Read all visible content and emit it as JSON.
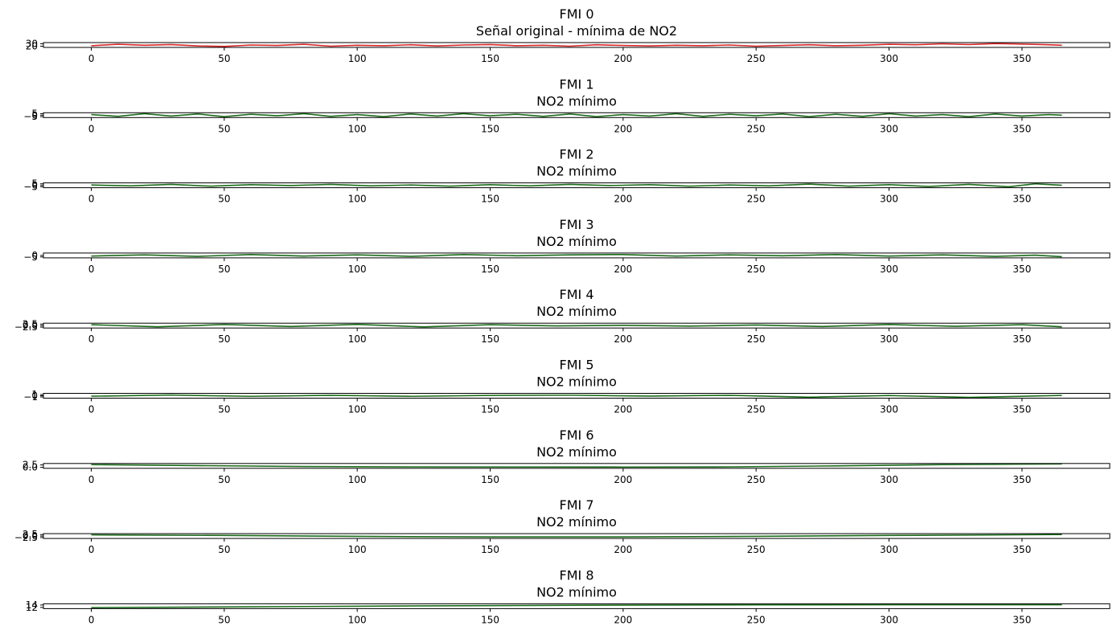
{
  "figure": {
    "panels": [
      {
        "title": "FMI 0",
        "subtitle": "Señal original - mínima de NO2",
        "yticks": [
          "20",
          "30"
        ],
        "ylim": [
          15,
          35
        ],
        "line_color": "#d62728"
      },
      {
        "title": "FMI 1",
        "subtitle": "NO2 mínimo",
        "yticks": [
          "−5",
          "0",
          "5"
        ],
        "ylim": [
          -8,
          8
        ],
        "line_color": "#1a6b1a"
      },
      {
        "title": "FMI 2",
        "subtitle": "NO2 mínimo",
        "yticks": [
          "−5",
          "0",
          "5"
        ],
        "ylim": [
          -8,
          8
        ],
        "line_color": "#1a6b1a"
      },
      {
        "title": "FMI 3",
        "subtitle": "NO2 mínimo",
        "yticks": [
          "−5",
          "0"
        ],
        "ylim": [
          -8,
          8
        ],
        "line_color": "#1a6b1a"
      },
      {
        "title": "FMI 4",
        "subtitle": "NO2 mínimo",
        "yticks": [
          "−2.5",
          "0.0",
          "2.5"
        ],
        "ylim": [
          -4,
          4
        ],
        "line_color": "#1a6b1a"
      },
      {
        "title": "FMI 5",
        "subtitle": "NO2 mínimo",
        "yticks": [
          "−1",
          "0",
          "1"
        ],
        "ylim": [
          -2,
          2
        ],
        "line_color": "#1a6b1a"
      },
      {
        "title": "FMI 6",
        "subtitle": "NO2 mínimo",
        "yticks": [
          "0.0",
          "2.5"
        ],
        "ylim": [
          -1,
          4
        ],
        "line_color": "#1a6b1a"
      },
      {
        "title": "FMI 7",
        "subtitle": "NO2 mínimo",
        "yticks": [
          "−2.5",
          "0.0",
          "2.5"
        ],
        "ylim": [
          -4,
          4
        ],
        "line_color": "#1a6b1a"
      },
      {
        "title": "FMI 8",
        "subtitle": "NO2 mínimo",
        "yticks": [
          "12",
          "14"
        ],
        "ylim": [
          11,
          15
        ],
        "line_color": "#1a6b1a"
      }
    ]
  },
  "chart_data": [
    {
      "type": "line",
      "title": "FMI 0",
      "subtitle": "Señal original - mínima de NO2",
      "x_range": [
        0,
        365
      ],
      "xlim": [
        -18,
        383
      ],
      "xticks": [
        0,
        50,
        100,
        150,
        200,
        250,
        300,
        350
      ],
      "ylim": [
        15,
        35
      ],
      "yticks": [
        20,
        30
      ],
      "grid": false,
      "series": [
        {
          "color": "#d62728",
          "x": [
            0,
            10,
            20,
            30,
            40,
            50,
            60,
            70,
            80,
            90,
            100,
            110,
            120,
            130,
            140,
            150,
            160,
            170,
            180,
            190,
            200,
            210,
            220,
            230,
            240,
            250,
            260,
            270,
            280,
            290,
            300,
            310,
            320,
            330,
            340,
            350,
            360,
            365
          ],
          "y": [
            22,
            28,
            24,
            27,
            21,
            19,
            25,
            23,
            28,
            20,
            24,
            22,
            26,
            21,
            25,
            27,
            22,
            24,
            20,
            26,
            23,
            21,
            24,
            22,
            25,
            20,
            23,
            26,
            22,
            24,
            28,
            26,
            30,
            27,
            31,
            29,
            26,
            24
          ]
        }
      ]
    },
    {
      "type": "line",
      "title": "FMI 1",
      "subtitle": "NO2 mínimo",
      "x_range": [
        0,
        365
      ],
      "xlim": [
        -18,
        383
      ],
      "xticks": [
        0,
        50,
        100,
        150,
        200,
        250,
        300,
        350
      ],
      "ylim": [
        -8,
        8
      ],
      "yticks": [
        -5,
        0,
        5
      ],
      "grid": false,
      "series": [
        {
          "color": "#1a6b1a",
          "x": [
            0,
            10,
            20,
            30,
            40,
            50,
            60,
            70,
            80,
            90,
            100,
            110,
            120,
            130,
            140,
            150,
            160,
            170,
            180,
            190,
            200,
            210,
            220,
            230,
            240,
            250,
            260,
            270,
            280,
            290,
            300,
            310,
            320,
            330,
            340,
            350,
            360,
            365
          ],
          "y": [
            2,
            -4,
            5,
            -3,
            4,
            -5,
            3,
            -2,
            5,
            -4,
            2,
            -5,
            4,
            -3,
            5,
            -2,
            3,
            -4,
            4,
            -5,
            2,
            -3,
            5,
            -4,
            3,
            -2,
            4,
            -5,
            3,
            -4,
            5,
            -3,
            2,
            -5,
            4,
            -3,
            2,
            0
          ]
        }
      ]
    },
    {
      "type": "line",
      "title": "FMI 2",
      "subtitle": "NO2 mínimo",
      "x_range": [
        0,
        365
      ],
      "xlim": [
        -18,
        383
      ],
      "xticks": [
        0,
        50,
        100,
        150,
        200,
        250,
        300,
        350
      ],
      "ylim": [
        -8,
        8
      ],
      "yticks": [
        -5,
        0,
        5
      ],
      "grid": false,
      "series": [
        {
          "color": "#1a6b1a",
          "x": [
            0,
            15,
            30,
            45,
            60,
            75,
            90,
            105,
            120,
            135,
            150,
            165,
            180,
            195,
            210,
            225,
            240,
            255,
            270,
            285,
            300,
            315,
            330,
            345,
            355,
            365
          ],
          "y": [
            1,
            -2,
            3,
            -3,
            2,
            -1,
            3,
            -2,
            1,
            -3,
            2,
            -2,
            3,
            -1,
            2,
            -3,
            1,
            -2,
            4,
            -3,
            2,
            -4,
            3,
            -5,
            5,
            0
          ]
        }
      ]
    },
    {
      "type": "line",
      "title": "FMI 3",
      "subtitle": "NO2 mínimo",
      "x_range": [
        0,
        365
      ],
      "xlim": [
        -18,
        383
      ],
      "xticks": [
        0,
        50,
        100,
        150,
        200,
        250,
        300,
        350
      ],
      "ylim": [
        -8,
        8
      ],
      "yticks": [
        -5,
        0
      ],
      "grid": false,
      "series": [
        {
          "color": "#1a6b1a",
          "x": [
            0,
            20,
            40,
            60,
            80,
            100,
            120,
            140,
            160,
            180,
            200,
            220,
            240,
            260,
            280,
            300,
            320,
            340,
            355,
            365
          ],
          "y": [
            -2,
            2,
            -3,
            3,
            -2,
            2,
            -3,
            3,
            -1,
            2,
            3,
            -2,
            2,
            -1,
            3,
            -2,
            2,
            -3,
            1,
            -4
          ]
        }
      ]
    },
    {
      "type": "line",
      "title": "FMI 4",
      "subtitle": "NO2 mínimo",
      "x_range": [
        0,
        365
      ],
      "xlim": [
        -18,
        383
      ],
      "xticks": [
        0,
        50,
        100,
        150,
        200,
        250,
        300,
        350
      ],
      "ylim": [
        -4,
        4
      ],
      "yticks": [
        -2.5,
        0.0,
        2.5
      ],
      "grid": false,
      "series": [
        {
          "color": "#1a6b1a",
          "x": [
            0,
            25,
            50,
            75,
            100,
            125,
            150,
            175,
            200,
            225,
            250,
            275,
            300,
            325,
            350,
            365
          ],
          "y": [
            1.5,
            -2.0,
            1.8,
            -1.5,
            2.0,
            -2.2,
            1.5,
            -0.5,
            0.5,
            -0.8,
            1.0,
            -1.5,
            1.8,
            -1.2,
            1.5,
            -2.0
          ]
        }
      ]
    },
    {
      "type": "line",
      "title": "FMI 5",
      "subtitle": "NO2 mínimo",
      "x_range": [
        0,
        365
      ],
      "xlim": [
        -18,
        383
      ],
      "xticks": [
        0,
        50,
        100,
        150,
        200,
        250,
        300,
        350
      ],
      "ylim": [
        -2,
        2
      ],
      "yticks": [
        -1,
        0,
        1
      ],
      "grid": false,
      "series": [
        {
          "color": "#1a6b1a",
          "x": [
            0,
            30,
            60,
            90,
            120,
            150,
            180,
            210,
            240,
            270,
            300,
            330,
            365
          ],
          "y": [
            -0.4,
            0.6,
            -0.5,
            0.4,
            -0.5,
            0.3,
            0.5,
            -0.3,
            0.4,
            -1.2,
            0.2,
            -1.4,
            0.3
          ]
        }
      ]
    },
    {
      "type": "line",
      "title": "FMI 6",
      "subtitle": "NO2 mínimo",
      "x_range": [
        0,
        365
      ],
      "xlim": [
        -18,
        383
      ],
      "xticks": [
        0,
        50,
        100,
        150,
        200,
        250,
        300,
        350
      ],
      "ylim": [
        -1,
        4
      ],
      "yticks": [
        0.0,
        2.5
      ],
      "grid": false,
      "series": [
        {
          "color": "#1a6b1a",
          "x": [
            0,
            40,
            80,
            120,
            160,
            200,
            240,
            280,
            320,
            365
          ],
          "y": [
            2.8,
            1.8,
            0.9,
            0.5,
            0.4,
            0.3,
            0.5,
            1.5,
            2.8,
            3.6
          ]
        }
      ]
    },
    {
      "type": "line",
      "title": "FMI 7",
      "subtitle": "NO2 mínimo",
      "x_range": [
        0,
        365
      ],
      "xlim": [
        -18,
        383
      ],
      "xticks": [
        0,
        50,
        100,
        150,
        200,
        250,
        300,
        350
      ],
      "ylim": [
        -4,
        4
      ],
      "yticks": [
        -2.5,
        0.0,
        2.5
      ],
      "grid": false,
      "series": [
        {
          "color": "#1a6b1a",
          "x": [
            0,
            50,
            100,
            150,
            200,
            250,
            300,
            365
          ],
          "y": [
            2.0,
            1.0,
            -0.5,
            -1.5,
            -1.5,
            -0.5,
            1.0,
            2.5
          ]
        }
      ]
    },
    {
      "type": "line",
      "title": "FMI 8",
      "subtitle": "NO2 mínimo",
      "x_range": [
        0,
        365
      ],
      "xlim": [
        -18,
        383
      ],
      "xticks": [
        0,
        50,
        100,
        150,
        200,
        250,
        300,
        350
      ],
      "ylim": [
        11,
        15
      ],
      "yticks": [
        12,
        14
      ],
      "grid": false,
      "series": [
        {
          "color": "#1a6b1a",
          "x": [
            0,
            50,
            100,
            150,
            200,
            250,
            300,
            365
          ],
          "y": [
            11.8,
            12.4,
            13.0,
            13.5,
            13.9,
            14.1,
            14.2,
            14.2
          ]
        }
      ]
    }
  ]
}
